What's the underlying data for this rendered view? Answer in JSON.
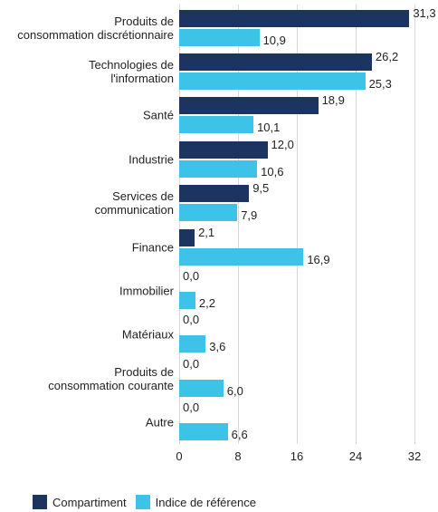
{
  "chart_data": {
    "type": "bar",
    "orientation": "horizontal",
    "categories": [
      "Produits de\nconsommation discrétionnaire",
      "Technologies de\nl'information",
      "Santé",
      "Industrie",
      "Services de\ncommunication",
      "Finance",
      "Immobilier",
      "Matériaux",
      "Produits de\nconsommation courante",
      "Autre"
    ],
    "series": [
      {
        "name": "Compartiment",
        "color": "#1c3560",
        "values": [
          31.3,
          26.2,
          18.9,
          12.0,
          9.5,
          2.1,
          0.0,
          0.0,
          0.0,
          0.0
        ],
        "value_labels": [
          "31,3",
          "26,2",
          "18,9",
          "12,0",
          "9,5",
          "2,1",
          "0,0",
          "0,0",
          "0,0",
          "0,0"
        ]
      },
      {
        "name": "Indice de référence",
        "color": "#3ec3e8",
        "values": [
          10.9,
          25.3,
          10.1,
          10.6,
          7.9,
          16.9,
          2.2,
          3.6,
          6.0,
          6.6
        ],
        "value_labels": [
          "10,9",
          "25,3",
          "10,1",
          "10,6",
          "7,9",
          "16,9",
          "2,2",
          "3,6",
          "6,0",
          "6,6"
        ]
      }
    ],
    "xlim": [
      0,
      32
    ],
    "xticks": [
      0,
      8,
      16,
      24,
      32
    ],
    "grid": true,
    "legend": "bottom-left"
  }
}
